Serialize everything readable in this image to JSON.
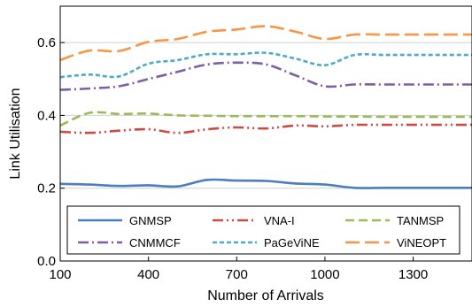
{
  "chart_data": {
    "type": "line",
    "xlabel": "Number of Arrivals",
    "ylabel": "Link Utilisation",
    "xlim": [
      100,
      1500
    ],
    "ylim": [
      0.0,
      0.7
    ],
    "xticks": [
      100,
      400,
      700,
      1000,
      1300
    ],
    "yticks": [
      0.0,
      0.2,
      0.4,
      0.6
    ],
    "ytick_labels": [
      "0.0",
      "0.2",
      "0.4",
      "0.6"
    ],
    "grid": "horizontal",
    "legend_position": "bottom",
    "x": [
      100,
      200,
      300,
      400,
      500,
      600,
      700,
      800,
      900,
      1000,
      1100,
      1200,
      1300,
      1400,
      1500
    ],
    "series": [
      {
        "name": "GNMSP",
        "color": "#4a7fbf",
        "dash": "solid",
        "values": [
          0.212,
          0.21,
          0.206,
          0.208,
          0.205,
          0.223,
          0.221,
          0.22,
          0.213,
          0.21,
          0.201,
          0.201,
          0.201,
          0.201,
          0.201
        ]
      },
      {
        "name": "VNA-I",
        "color": "#cc4a42",
        "dash": "dashdotdot",
        "values": [
          0.355,
          0.352,
          0.358,
          0.362,
          0.352,
          0.362,
          0.367,
          0.364,
          0.372,
          0.37,
          0.374,
          0.374,
          0.374,
          0.374,
          0.374
        ]
      },
      {
        "name": "TANMSP",
        "color": "#9bbb59",
        "dash": "dash",
        "values": [
          0.372,
          0.407,
          0.404,
          0.405,
          0.4,
          0.399,
          0.398,
          0.398,
          0.398,
          0.397,
          0.397,
          0.396,
          0.396,
          0.396,
          0.396
        ]
      },
      {
        "name": "CNMMCF",
        "color": "#7d5fa3",
        "dash": "dashdot",
        "values": [
          0.47,
          0.474,
          0.48,
          0.5,
          0.52,
          0.54,
          0.545,
          0.54,
          0.51,
          0.48,
          0.485,
          0.485,
          0.485,
          0.485,
          0.485
        ]
      },
      {
        "name": "PaGeViNE",
        "color": "#4bacc6",
        "dash": "shortdash",
        "values": [
          0.505,
          0.512,
          0.507,
          0.542,
          0.552,
          0.568,
          0.568,
          0.572,
          0.556,
          0.538,
          0.566,
          0.566,
          0.566,
          0.566,
          0.566
        ]
      },
      {
        "name": "ViNEOPT",
        "color": "#f79646",
        "dash": "longdash",
        "values": [
          0.552,
          0.578,
          0.577,
          0.602,
          0.61,
          0.63,
          0.636,
          0.645,
          0.63,
          0.61,
          0.622,
          0.622,
          0.622,
          0.622,
          0.622
        ]
      }
    ]
  }
}
